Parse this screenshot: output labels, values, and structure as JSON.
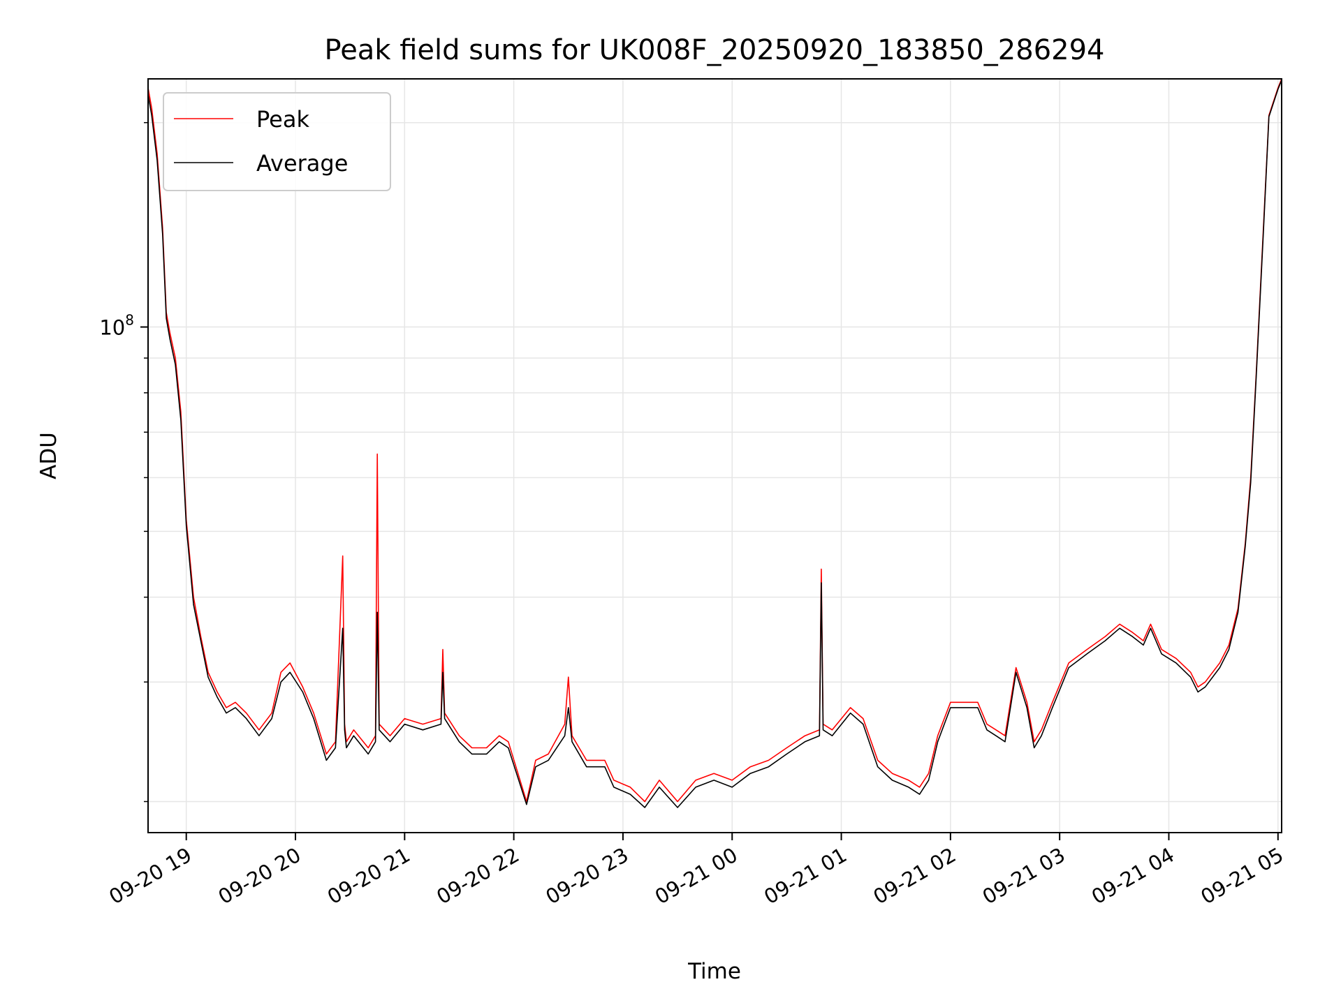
{
  "chart_data": {
    "type": "line",
    "title": "Peak field sums for UK008F_20250920_183850_286294",
    "xlabel": "Time",
    "ylabel": "ADU",
    "yscale": "log",
    "ylim": [
      18000000,
      232000000
    ],
    "xlim": [
      "2025-09-20T18:39:00",
      "2025-09-21T05:02:00"
    ],
    "x_ticks": [
      "09-20 19",
      "09-20 20",
      "09-20 21",
      "09-20 22",
      "09-20 23",
      "09-21 00",
      "09-21 01",
      "09-21 02",
      "09-21 03",
      "09-21 04",
      "09-21 05"
    ],
    "x_tick_times": [
      "2025-09-20T19:00:00",
      "2025-09-20T20:00:00",
      "2025-09-20T21:00:00",
      "2025-09-20T22:00:00",
      "2025-09-20T23:00:00",
      "2025-09-21T00:00:00",
      "2025-09-21T01:00:00",
      "2025-09-21T02:00:00",
      "2025-09-21T03:00:00",
      "2025-09-21T04:00:00",
      "2025-09-21T05:00:00"
    ],
    "y_major_ticks": [
      {
        "value": 100000000,
        "label": "10",
        "exponent": "8"
      }
    ],
    "grid": true,
    "legend_position": "upper-left",
    "colors": {
      "peak": "#ff0000",
      "average": "#000000"
    },
    "x": [
      "2025-09-20T18:39:00",
      "2025-09-20T18:41:00",
      "2025-09-20T18:44:00",
      "2025-09-20T18:47:00",
      "2025-09-20T18:49:00",
      "2025-09-20T18:51:00",
      "2025-09-20T18:54:00",
      "2025-09-20T18:57:00",
      "2025-09-20T19:00:00",
      "2025-09-20T19:04:00",
      "2025-09-20T19:08:00",
      "2025-09-20T19:12:00",
      "2025-09-20T19:17:00",
      "2025-09-20T19:22:00",
      "2025-09-20T19:27:00",
      "2025-09-20T19:33:00",
      "2025-09-20T19:40:00",
      "2025-09-20T19:47:00",
      "2025-09-20T19:52:00",
      "2025-09-20T19:57:00",
      "2025-09-20T20:04:00",
      "2025-09-20T20:10:00",
      "2025-09-20T20:17:00",
      "2025-09-20T20:22:00",
      "2025-09-20T20:26:00",
      "2025-09-20T20:27:00",
      "2025-09-20T20:28:00",
      "2025-09-20T20:32:00",
      "2025-09-20T20:40:00",
      "2025-09-20T20:44:00",
      "2025-09-20T20:45:00",
      "2025-09-20T20:46:00",
      "2025-09-20T20:52:00",
      "2025-09-20T21:00:00",
      "2025-09-20T21:10:00",
      "2025-09-20T21:20:00",
      "2025-09-20T21:21:00",
      "2025-09-20T21:22:00",
      "2025-09-20T21:30:00",
      "2025-09-20T21:37:00",
      "2025-09-20T21:45:00",
      "2025-09-20T21:52:00",
      "2025-09-20T21:57:00",
      "2025-09-20T22:07:00",
      "2025-09-20T22:12:00",
      "2025-09-20T22:19:00",
      "2025-09-20T22:28:00",
      "2025-09-20T22:30:00",
      "2025-09-20T22:32:00",
      "2025-09-20T22:40:00",
      "2025-09-20T22:50:00",
      "2025-09-20T22:55:00",
      "2025-09-20T23:04:00",
      "2025-09-20T23:12:00",
      "2025-09-20T23:20:00",
      "2025-09-20T23:30:00",
      "2025-09-20T23:40:00",
      "2025-09-20T23:50:00",
      "2025-09-21T00:00:00",
      "2025-09-21T00:10:00",
      "2025-09-21T00:20:00",
      "2025-09-21T00:30:00",
      "2025-09-21T00:40:00",
      "2025-09-21T00:48:00",
      "2025-09-21T00:49:00",
      "2025-09-21T00:50:00",
      "2025-09-21T00:55:00",
      "2025-09-21T01:05:00",
      "2025-09-21T01:12:00",
      "2025-09-21T01:20:00",
      "2025-09-21T01:28:00",
      "2025-09-21T01:37:00",
      "2025-09-21T01:43:00",
      "2025-09-21T01:48:00",
      "2025-09-21T01:53:00",
      "2025-09-21T02:00:00",
      "2025-09-21T02:08:00",
      "2025-09-21T02:15:00",
      "2025-09-21T02:20:00",
      "2025-09-21T02:25:00",
      "2025-09-21T02:30:00",
      "2025-09-21T02:36:00",
      "2025-09-21T02:42:00",
      "2025-09-21T02:46:00",
      "2025-09-21T02:50:00",
      "2025-09-21T02:56:00",
      "2025-09-21T03:05:00",
      "2025-09-21T03:15:00",
      "2025-09-21T03:25:00",
      "2025-09-21T03:33:00",
      "2025-09-21T03:40:00",
      "2025-09-21T03:46:00",
      "2025-09-21T03:50:00",
      "2025-09-21T03:56:00",
      "2025-09-21T04:04:00",
      "2025-09-21T04:12:00",
      "2025-09-21T04:16:00",
      "2025-09-21T04:20:00",
      "2025-09-21T04:28:00",
      "2025-09-21T04:33:00",
      "2025-09-21T04:38:00",
      "2025-09-21T04:42:00",
      "2025-09-21T04:45:00",
      "2025-09-21T04:48:00",
      "2025-09-21T04:52:00",
      "2025-09-21T04:55:00",
      "2025-09-21T05:00:00",
      "2025-09-21T05:02:00"
    ],
    "series": [
      {
        "name": "Peak",
        "values": [
          225000000,
          210000000,
          180000000,
          140000000,
          105000000,
          98000000,
          90000000,
          75000000,
          52000000,
          40000000,
          35000000,
          31000000,
          29000000,
          27500000,
          28000000,
          27000000,
          25500000,
          27000000,
          31000000,
          32000000,
          29500000,
          27000000,
          23500000,
          24500000,
          46000000,
          26000000,
          24500000,
          25500000,
          24000000,
          25000000,
          65000000,
          26000000,
          25000000,
          26500000,
          26000000,
          26500000,
          33500000,
          27000000,
          25000000,
          24000000,
          24000000,
          25000000,
          24500000,
          20000000,
          23000000,
          23500000,
          26000000,
          30500000,
          25000000,
          23000000,
          23000000,
          21500000,
          21000000,
          20000000,
          21500000,
          20000000,
          21500000,
          22000000,
          21500000,
          22500000,
          23000000,
          24000000,
          25000000,
          25500000,
          44000000,
          26000000,
          25500000,
          27500000,
          26500000,
          23000000,
          22000000,
          21500000,
          21000000,
          22000000,
          25000000,
          28000000,
          28000000,
          28000000,
          26000000,
          25500000,
          25000000,
          31500000,
          28000000,
          24500000,
          25500000,
          28000000,
          32000000,
          33500000,
          35000000,
          36500000,
          35500000,
          34500000,
          36500000,
          33500000,
          32500000,
          31000000,
          29500000,
          30000000,
          32000000,
          34000000,
          38500000,
          48000000,
          60000000,
          85000000,
          140000000,
          205000000,
          225000000,
          232000000
        ]
      },
      {
        "name": "Average",
        "values": [
          220000000,
          205000000,
          176000000,
          137000000,
          103000000,
          96000000,
          88000000,
          73000000,
          51000000,
          39000000,
          34500000,
          30500000,
          28500000,
          27000000,
          27500000,
          26500000,
          25000000,
          26500000,
          30000000,
          31000000,
          29000000,
          26500000,
          23000000,
          24000000,
          36000000,
          25500000,
          24000000,
          25000000,
          23500000,
          24500000,
          38000000,
          25500000,
          24500000,
          26000000,
          25500000,
          26000000,
          31000000,
          26500000,
          24500000,
          23500000,
          23500000,
          24500000,
          24000000,
          19800000,
          22500000,
          23000000,
          25000000,
          27500000,
          24500000,
          22500000,
          22500000,
          21000000,
          20500000,
          19600000,
          21000000,
          19600000,
          21000000,
          21500000,
          21000000,
          22000000,
          22500000,
          23500000,
          24500000,
          25000000,
          42000000,
          25500000,
          25000000,
          27000000,
          26000000,
          22500000,
          21500000,
          21000000,
          20500000,
          21500000,
          24500000,
          27500000,
          27500000,
          27500000,
          25500000,
          25000000,
          24500000,
          31000000,
          27500000,
          24000000,
          25000000,
          27500000,
          31500000,
          33000000,
          34500000,
          36000000,
          35000000,
          34000000,
          36000000,
          33000000,
          32000000,
          30500000,
          29000000,
          29500000,
          31500000,
          33500000,
          38000000,
          47500000,
          59000000,
          84000000,
          138000000,
          204000000,
          224000000,
          231000000
        ]
      }
    ]
  }
}
